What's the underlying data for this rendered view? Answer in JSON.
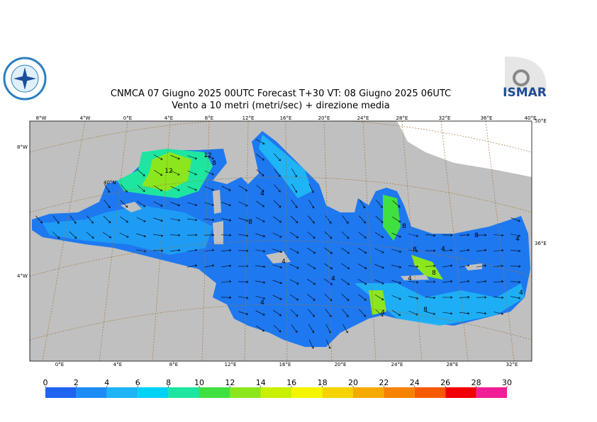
{
  "header": {
    "title": "CNMCA 07   Giugno  2025 00UTC Forecast T+30 VT: 08   Giugno  2025 06UTC",
    "subtitle": "Vento a 10 metri (metri/sec) + direzione media",
    "logo_right": "ISMAR"
  },
  "map": {
    "top_labels": [
      "8°W",
      "4°W",
      "0°E",
      "4°E",
      "8°E",
      "12°E",
      "16°E",
      "20°E",
      "24°E",
      "28°E",
      "32°E",
      "36°E",
      "40°E"
    ],
    "bottom_labels": [
      "0°E",
      "4°E",
      "8°E",
      "12°E",
      "16°E",
      "20°E",
      "24°E",
      "28°E",
      "32°E"
    ],
    "side_labels": [
      "8°W",
      "40°N",
      "4°W",
      "50°E",
      "36°E"
    ],
    "contour_labels": [
      "12",
      "12",
      "8",
      "4",
      "8",
      "4",
      "4",
      "4",
      "4",
      "8",
      "8",
      "4",
      "8",
      "4",
      "8",
      "8",
      "4",
      "4"
    ]
  },
  "colorbar": {
    "ticks": [
      0,
      2,
      4,
      6,
      8,
      10,
      12,
      14,
      16,
      18,
      20,
      22,
      24,
      26,
      28,
      30
    ],
    "colors": [
      "#1e64f0",
      "#1e8cf5",
      "#1eb4f5",
      "#00d2f5",
      "#1ee6a0",
      "#40e040",
      "#8ce61e",
      "#c8f000",
      "#f5f500",
      "#f5d200",
      "#f5aa00",
      "#f58200",
      "#f55a00",
      "#f00000",
      "#f01e96"
    ]
  }
}
